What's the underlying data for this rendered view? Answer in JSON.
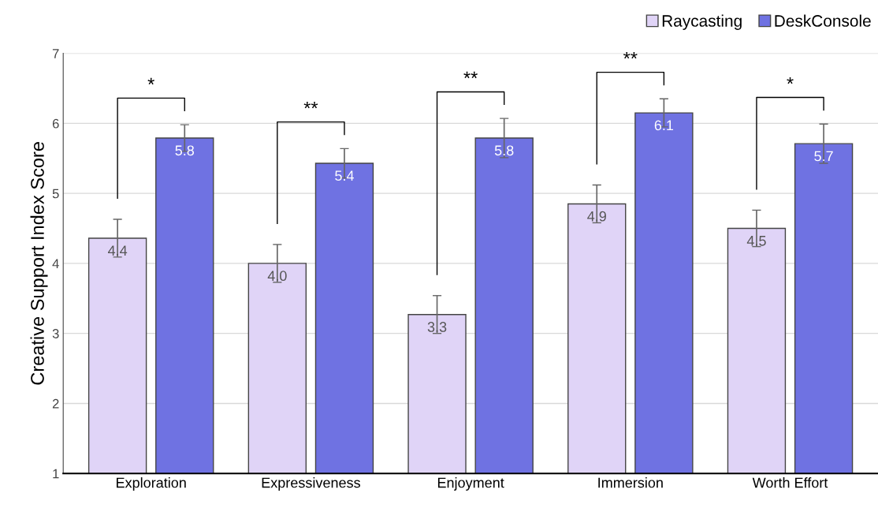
{
  "chart_data": {
    "type": "bar",
    "ylabel": "Creative Support Index Score",
    "categories": [
      "Exploration",
      "Expressiveness",
      "Enjoyment",
      "Immersion",
      "Worth Effort"
    ],
    "series": [
      {
        "name": "Raycasting",
        "color": "#e0d4f7",
        "values": [
          4.36,
          4.0,
          3.27,
          4.85,
          4.5
        ],
        "errors": [
          0.27,
          0.27,
          0.27,
          0.27,
          0.26
        ],
        "value_labels": [
          "4.4",
          "4.0",
          "3.3",
          "4.9",
          "4.5"
        ]
      },
      {
        "name": "DeskConsole",
        "color": "#6f72e2",
        "values": [
          5.79,
          5.43,
          5.79,
          6.15,
          5.71
        ],
        "errors": [
          0.19,
          0.21,
          0.28,
          0.2,
          0.28
        ],
        "value_labels": [
          "5.8",
          "5.4",
          "5.8",
          "6.1",
          "5.7"
        ]
      }
    ],
    "ylim": [
      1,
      7
    ],
    "yticks": [
      1,
      2,
      3,
      4,
      5,
      6,
      7
    ],
    "grid": "y",
    "legend": "top right",
    "annotations": [
      "*",
      "**",
      "**",
      "**",
      "*"
    ]
  }
}
